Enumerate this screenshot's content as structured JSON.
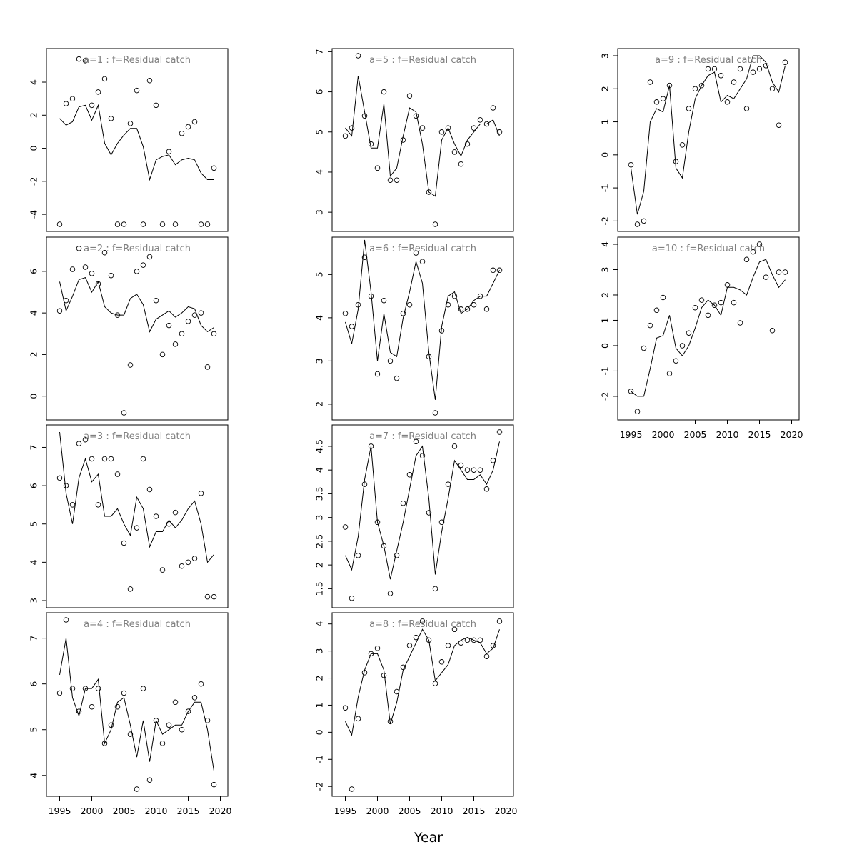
{
  "figure": {
    "xlabel": "Year"
  },
  "chart_data": [
    {
      "type": "line",
      "title": "a=1  :  f=Residual catch",
      "xlim": [
        1995,
        2019
      ],
      "ylim": [
        -4.6,
        5.6
      ],
      "yticks": [
        -4,
        -2,
        0,
        2,
        4
      ],
      "xticks": [
        1995,
        2000,
        2005,
        2010,
        2015,
        2020
      ],
      "x": [
        1995,
        1996,
        1997,
        1998,
        1999,
        2000,
        2001,
        2002,
        2003,
        2004,
        2005,
        2006,
        2007,
        2008,
        2009,
        2010,
        2011,
        2012,
        2013,
        2014,
        2015,
        2016,
        2017,
        2018,
        2019
      ],
      "observed": [
        -4.6,
        2.7,
        3.0,
        5.4,
        5.3,
        2.6,
        3.4,
        4.2,
        1.8,
        -4.6,
        -4.6,
        1.5,
        3.5,
        -4.6,
        4.1,
        2.6,
        -4.6,
        -0.2,
        -4.6,
        0.9,
        1.3,
        1.6,
        -4.6,
        -4.6,
        -1.2
      ],
      "fitted": [
        1.8,
        1.4,
        1.6,
        2.5,
        2.6,
        1.7,
        2.6,
        0.3,
        -0.4,
        0.3,
        0.8,
        1.2,
        1.2,
        0.1,
        -1.9,
        -0.7,
        -0.5,
        -0.4,
        -1.0,
        -0.7,
        -0.6,
        -0.7,
        -1.5,
        -1.9,
        -1.9
      ]
    },
    {
      "type": "line",
      "title": "a=2  :  f=Residual catch",
      "xlim": [
        1995,
        2019
      ],
      "ylim": [
        -0.8,
        7.3
      ],
      "yticks": [
        0,
        2,
        4,
        6
      ],
      "xticks": [
        1995,
        2000,
        2005,
        2010,
        2015,
        2020
      ],
      "x": [
        1995,
        1996,
        1997,
        1998,
        1999,
        2000,
        2001,
        2002,
        2003,
        2004,
        2005,
        2006,
        2007,
        2008,
        2009,
        2010,
        2011,
        2012,
        2013,
        2014,
        2015,
        2016,
        2017,
        2018,
        2019
      ],
      "observed": [
        4.1,
        4.6,
        6.1,
        7.1,
        6.2,
        5.9,
        5.4,
        6.9,
        5.8,
        3.9,
        -0.8,
        1.5,
        6.0,
        6.3,
        6.7,
        4.6,
        2.0,
        3.4,
        2.5,
        3.0,
        3.6,
        3.9,
        4.0,
        1.4,
        3.0
      ],
      "fitted": [
        5.5,
        4.1,
        4.8,
        5.6,
        5.7,
        5.0,
        5.5,
        4.3,
        4.0,
        3.9,
        3.9,
        4.7,
        4.9,
        4.4,
        3.1,
        3.7,
        3.9,
        4.1,
        3.8,
        4.0,
        4.3,
        4.2,
        3.4,
        3.1,
        3.3
      ]
    },
    {
      "type": "line",
      "title": "a=3  :  f=Residual catch",
      "xlim": [
        1995,
        2019
      ],
      "ylim": [
        3.0,
        7.4
      ],
      "yticks": [
        3,
        4,
        5,
        6,
        7
      ],
      "xticks": [
        1995,
        2000,
        2005,
        2010,
        2015,
        2020
      ],
      "x": [
        1995,
        1996,
        1997,
        1998,
        1999,
        2000,
        2001,
        2002,
        2003,
        2004,
        2005,
        2006,
        2007,
        2008,
        2009,
        2010,
        2011,
        2012,
        2013,
        2014,
        2015,
        2016,
        2017,
        2018,
        2019
      ],
      "observed": [
        6.2,
        6.0,
        5.5,
        7.1,
        7.2,
        6.7,
        5.5,
        6.7,
        6.7,
        6.3,
        4.5,
        3.3,
        4.9,
        6.7,
        5.9,
        5.2,
        3.8,
        5.0,
        5.3,
        3.9,
        4.0,
        4.1,
        5.8,
        3.1,
        3.1
      ],
      "fitted": [
        7.4,
        5.8,
        5.0,
        6.2,
        6.7,
        6.1,
        6.3,
        5.2,
        5.2,
        5.4,
        5.0,
        4.7,
        5.7,
        5.4,
        4.4,
        4.8,
        4.8,
        5.1,
        4.9,
        5.1,
        5.4,
        5.6,
        5.0,
        4.0,
        4.2
      ]
    },
    {
      "type": "line",
      "title": "a=4  :  f=Residual catch",
      "xlim": [
        1995,
        2019
      ],
      "ylim": [
        3.7,
        7.4
      ],
      "yticks": [
        4,
        5,
        6,
        7
      ],
      "xticks": [
        1995,
        2000,
        2005,
        2010,
        2015,
        2020
      ],
      "x": [
        1995,
        1996,
        1997,
        1998,
        1999,
        2000,
        2001,
        2002,
        2003,
        2004,
        2005,
        2006,
        2007,
        2008,
        2009,
        2010,
        2011,
        2012,
        2013,
        2014,
        2015,
        2016,
        2017,
        2018,
        2019
      ],
      "observed": [
        5.8,
        7.4,
        5.9,
        5.4,
        5.9,
        5.5,
        5.9,
        4.7,
        5.1,
        5.5,
        5.8,
        4.9,
        3.7,
        5.9,
        3.9,
        5.2,
        4.7,
        5.1,
        5.6,
        5.0,
        5.4,
        5.7,
        6.0,
        5.2,
        3.8
      ],
      "fitted": [
        6.2,
        7.0,
        5.7,
        5.3,
        5.9,
        5.9,
        6.1,
        4.7,
        5.0,
        5.6,
        5.7,
        5.1,
        4.4,
        5.2,
        4.3,
        5.2,
        4.9,
        5.0,
        5.1,
        5.1,
        5.4,
        5.6,
        5.6,
        5.0,
        4.1
      ]
    },
    {
      "type": "line",
      "title": "a=5  :  f=Residual catch",
      "xlim": [
        1995,
        2019
      ],
      "ylim": [
        2.7,
        6.9
      ],
      "yticks": [
        3,
        4,
        5,
        6,
        7
      ],
      "xticks": [
        1995,
        2000,
        2005,
        2010,
        2015,
        2020
      ],
      "x": [
        1995,
        1996,
        1997,
        1998,
        1999,
        2000,
        2001,
        2002,
        2003,
        2004,
        2005,
        2006,
        2007,
        2008,
        2009,
        2010,
        2011,
        2012,
        2013,
        2014,
        2015,
        2016,
        2017,
        2018,
        2019
      ],
      "observed": [
        4.9,
        5.1,
        6.9,
        5.4,
        4.7,
        4.1,
        6.0,
        3.8,
        3.8,
        4.8,
        5.9,
        5.4,
        5.1,
        3.5,
        2.7,
        5.0,
        5.1,
        4.5,
        4.2,
        4.7,
        5.1,
        5.3,
        5.2,
        5.6,
        5.0
      ],
      "fitted": [
        5.1,
        4.9,
        6.4,
        5.5,
        4.6,
        4.6,
        5.7,
        3.9,
        4.1,
        4.9,
        5.6,
        5.5,
        4.7,
        3.5,
        3.4,
        4.8,
        5.1,
        4.7,
        4.4,
        4.8,
        5.0,
        5.2,
        5.2,
        5.3,
        4.9
      ]
    },
    {
      "type": "line",
      "title": "a=6  :  f=Residual catch",
      "xlim": [
        1995,
        2019
      ],
      "ylim": [
        1.8,
        5.7
      ],
      "yticks": [
        2,
        3,
        4,
        5
      ],
      "xticks": [
        1995,
        2000,
        2005,
        2010,
        2015,
        2020
      ],
      "x": [
        1995,
        1996,
        1997,
        1998,
        1999,
        2000,
        2001,
        2002,
        2003,
        2004,
        2005,
        2006,
        2007,
        2008,
        2009,
        2010,
        2011,
        2012,
        2013,
        2014,
        2015,
        2016,
        2017,
        2018,
        2019
      ],
      "observed": [
        4.1,
        3.8,
        4.3,
        5.4,
        4.5,
        2.7,
        4.4,
        3.0,
        2.6,
        4.1,
        4.3,
        5.5,
        5.3,
        3.1,
        1.8,
        3.7,
        4.3,
        4.5,
        4.2,
        4.2,
        4.3,
        4.5,
        4.2,
        5.1,
        5.1
      ],
      "fitted": [
        3.9,
        3.4,
        4.2,
        5.8,
        4.6,
        3.0,
        4.1,
        3.2,
        3.1,
        4.0,
        4.6,
        5.3,
        4.8,
        3.2,
        2.1,
        3.8,
        4.5,
        4.6,
        4.1,
        4.2,
        4.4,
        4.5,
        4.5,
        4.8,
        5.1
      ]
    },
    {
      "type": "line",
      "title": "a=7  :  f=Residual catch",
      "xlim": [
        1995,
        2019
      ],
      "ylim": [
        1.25,
        4.8
      ],
      "yticks": [
        1.5,
        2.0,
        2.5,
        3.0,
        3.5,
        4.0,
        4.5
      ],
      "xticks": [
        1995,
        2000,
        2005,
        2010,
        2015,
        2020
      ],
      "x": [
        1995,
        1996,
        1997,
        1998,
        1999,
        2000,
        2001,
        2002,
        2003,
        2004,
        2005,
        2006,
        2007,
        2008,
        2009,
        2010,
        2011,
        2012,
        2013,
        2014,
        2015,
        2016,
        2017,
        2018,
        2019
      ],
      "observed": [
        2.8,
        1.3,
        2.2,
        3.7,
        4.5,
        2.9,
        2.4,
        1.4,
        2.2,
        3.3,
        3.9,
        4.6,
        4.3,
        3.1,
        1.5,
        2.9,
        3.7,
        4.5,
        4.1,
        4.0,
        4.0,
        4.0,
        3.6,
        4.2,
        4.8
      ],
      "fitted": [
        2.2,
        1.9,
        2.6,
        3.8,
        4.5,
        2.9,
        2.4,
        1.7,
        2.3,
        2.9,
        3.6,
        4.3,
        4.5,
        3.4,
        1.8,
        2.7,
        3.4,
        4.2,
        4.0,
        3.8,
        3.8,
        3.9,
        3.7,
        4.0,
        4.6
      ]
    },
    {
      "type": "line",
      "title": "a=8  :  f=Residual catch",
      "xlim": [
        1995,
        2019
      ],
      "ylim": [
        -2.1,
        4.15
      ],
      "yticks": [
        -2,
        -1,
        0,
        1,
        2,
        3,
        4
      ],
      "xticks": [
        1995,
        2000,
        2005,
        2010,
        2015,
        2020
      ],
      "x": [
        1995,
        1996,
        1997,
        1998,
        1999,
        2000,
        2001,
        2002,
        2003,
        2004,
        2005,
        2006,
        2007,
        2008,
        2009,
        2010,
        2011,
        2012,
        2013,
        2014,
        2015,
        2016,
        2017,
        2018,
        2019
      ],
      "observed": [
        0.9,
        -2.1,
        0.5,
        2.2,
        2.9,
        3.1,
        2.1,
        0.4,
        1.5,
        2.4,
        3.2,
        3.5,
        4.1,
        3.4,
        1.8,
        2.6,
        3.2,
        3.8,
        3.3,
        3.4,
        3.4,
        3.4,
        2.8,
        3.2,
        4.1
      ],
      "fitted": [
        0.4,
        -0.1,
        1.3,
        2.3,
        2.9,
        2.9,
        2.3,
        0.3,
        1.1,
        2.3,
        2.8,
        3.3,
        3.8,
        3.4,
        1.9,
        2.2,
        2.5,
        3.2,
        3.4,
        3.5,
        3.4,
        3.3,
        2.9,
        3.1,
        3.8
      ]
    },
    {
      "type": "line",
      "title": "a=9  :  f=Residual catch",
      "xlim": [
        1995,
        2019
      ],
      "ylim": [
        -2.1,
        3.0
      ],
      "yticks": [
        -2,
        -1,
        0,
        1,
        2,
        3
      ],
      "xticks": [
        1995,
        2000,
        2005,
        2010,
        2015,
        2020
      ],
      "x": [
        1995,
        1996,
        1997,
        1998,
        1999,
        2000,
        2001,
        2002,
        2003,
        2004,
        2005,
        2006,
        2007,
        2008,
        2009,
        2010,
        2011,
        2012,
        2013,
        2014,
        2015,
        2016,
        2017,
        2018,
        2019
      ],
      "observed": [
        -0.3,
        -2.1,
        -2.0,
        2.2,
        1.6,
        1.7,
        2.1,
        -0.2,
        0.3,
        1.4,
        2.0,
        2.1,
        2.6,
        2.6,
        2.4,
        1.6,
        2.2,
        2.6,
        1.4,
        2.5,
        2.6,
        2.7,
        2.0,
        0.9,
        2.8
      ],
      "fitted": [
        -0.4,
        -1.8,
        -1.1,
        1.0,
        1.4,
        1.3,
        2.1,
        -0.4,
        -0.7,
        0.7,
        1.7,
        2.1,
        2.4,
        2.5,
        1.6,
        1.8,
        1.7,
        2.0,
        2.3,
        3.0,
        3.0,
        2.8,
        2.2,
        1.9,
        2.7
      ]
    },
    {
      "type": "line",
      "title": "a=10  :  f=Residual catch",
      "xlim": [
        1995,
        2019
      ],
      "ylim": [
        -2.65,
        4.0
      ],
      "yticks": [
        -2,
        -1,
        0,
        1,
        2,
        3,
        4
      ],
      "xticks": [
        1995,
        2000,
        2005,
        2010,
        2015,
        2020
      ],
      "x": [
        1995,
        1996,
        1997,
        1998,
        1999,
        2000,
        2001,
        2002,
        2003,
        2004,
        2005,
        2006,
        2007,
        2008,
        2009,
        2010,
        2011,
        2012,
        2013,
        2014,
        2015,
        2016,
        2017,
        2018,
        2019
      ],
      "observed": [
        -1.8,
        -2.6,
        -0.1,
        0.8,
        1.4,
        1.9,
        -1.1,
        -0.6,
        0.0,
        0.5,
        1.5,
        1.8,
        1.2,
        1.6,
        1.7,
        2.4,
        1.7,
        0.9,
        3.4,
        3.7,
        4.0,
        2.7,
        0.6,
        2.9,
        2.9
      ],
      "fitted": [
        -1.8,
        -2.0,
        -2.0,
        -0.9,
        0.3,
        0.4,
        1.2,
        -0.1,
        -0.4,
        0.0,
        0.7,
        1.5,
        1.8,
        1.6,
        1.2,
        2.3,
        2.3,
        2.2,
        2.0,
        2.7,
        3.3,
        3.4,
        2.8,
        2.3,
        2.6
      ]
    }
  ]
}
